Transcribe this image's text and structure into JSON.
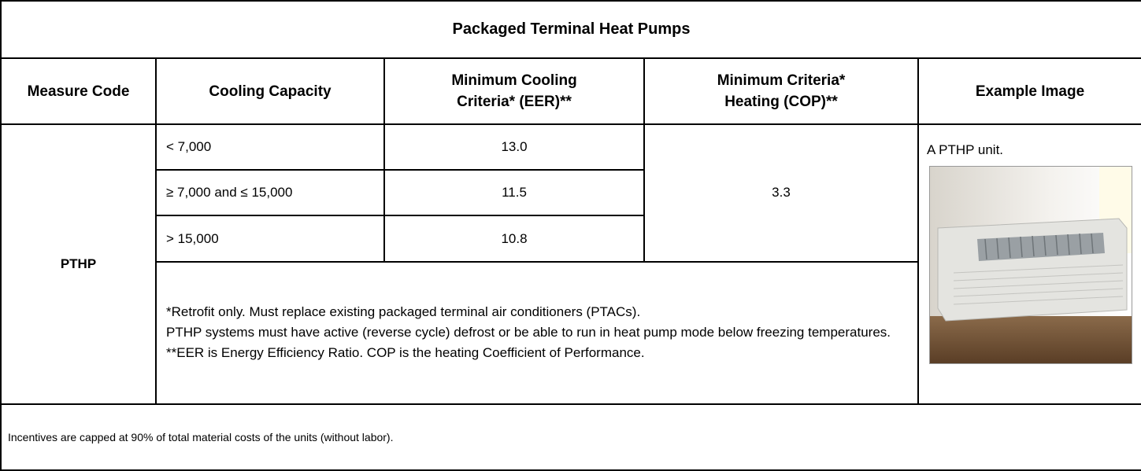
{
  "table": {
    "title": "Packaged Terminal Heat Pumps",
    "headers": [
      [
        "Measure Code"
      ],
      [
        "Cooling Capacity"
      ],
      [
        "Minimum Cooling",
        "Criteria* (EER)**"
      ],
      [
        "Minimum Criteria*",
        "Heating (COP)**"
      ],
      [
        "Example Image"
      ]
    ],
    "measure_code": "PTHP",
    "rows": [
      [
        "< 7,000",
        "13.0"
      ],
      [
        "≥ 7,000 and ≤ 15,000",
        "11.5"
      ],
      [
        "> 15,000",
        "10.8"
      ]
    ],
    "heating_cop": "3.3",
    "notes": [
      "*Retrofit only. Must replace existing packaged terminal air conditioners (PTACs).",
      "PTHP systems must have active (reverse cycle) defrost or be able to run in heat pump mode below freezing temperatures.",
      "**EER is Energy Efficiency Ratio. COP is the heating Coefficient of Performance."
    ],
    "image_caption": "A PTHP unit.",
    "footer": "Incentives are capped at 90% of total material costs of the units (without labor)."
  }
}
